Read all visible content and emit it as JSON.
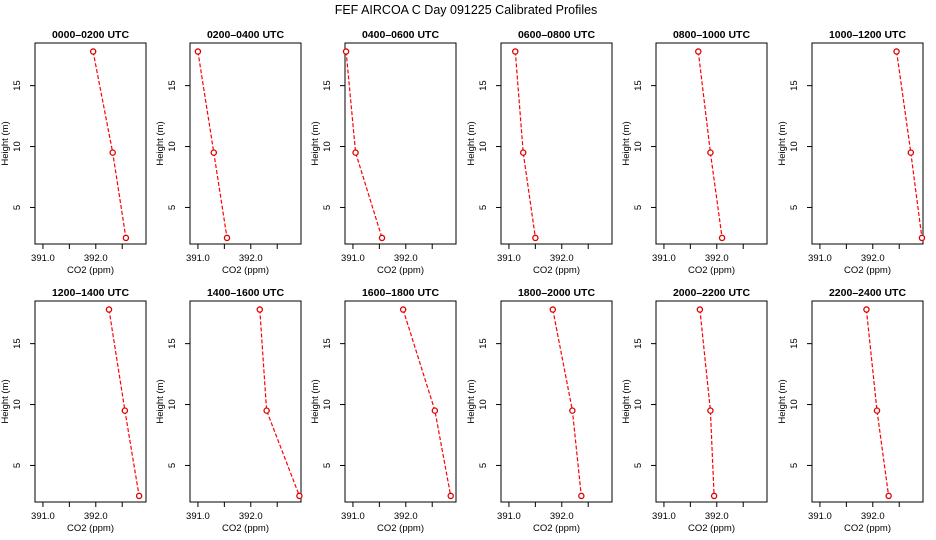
{
  "figure_title": "FEF AIRCOA C  Day 091225  Calibrated Profiles",
  "colors": {
    "line": "#ff0000",
    "marker": "#dd0000",
    "axis": "#000000"
  },
  "chart_data": [
    {
      "type": "line",
      "title": "0000–0200 UTC",
      "xlabel": "CO2 (ppm)",
      "ylabel": "Height (m)",
      "xlim": [
        390.85,
        392.95
      ],
      "ylim": [
        2.0,
        18.5
      ],
      "xticks": [
        391.0,
        392.0
      ],
      "xtick_labels": [
        "391.0",
        "392.0"
      ],
      "yticks": [
        5,
        10,
        15
      ],
      "ytick_labels": [
        "5",
        "10",
        "15"
      ],
      "series": [
        {
          "name": "CO2",
          "x": [
            391.95,
            392.32,
            392.57
          ],
          "y": [
            17.8,
            9.5,
            2.5
          ]
        }
      ]
    },
    {
      "type": "line",
      "title": "0200–0400 UTC",
      "xlabel": "CO2 (ppm)",
      "ylabel": "Height (m)",
      "xlim": [
        390.85,
        392.95
      ],
      "ylim": [
        2.0,
        18.5
      ],
      "xticks": [
        391.0,
        392.0
      ],
      "xtick_labels": [
        "391.0",
        "392.0"
      ],
      "yticks": [
        5,
        10,
        15
      ],
      "ytick_labels": [
        "5",
        "10",
        "15"
      ],
      "series": [
        {
          "name": "CO2",
          "x": [
            391.0,
            391.3,
            391.55
          ],
          "y": [
            17.8,
            9.5,
            2.5
          ]
        }
      ]
    },
    {
      "type": "line",
      "title": "0400–0600 UTC",
      "xlabel": "CO2 (ppm)",
      "ylabel": "Height (m)",
      "xlim": [
        390.85,
        392.95
      ],
      "ylim": [
        2.0,
        18.5
      ],
      "xticks": [
        391.0,
        392.0
      ],
      "xtick_labels": [
        "391.0",
        "392.0"
      ],
      "yticks": [
        5,
        10,
        15
      ],
      "ytick_labels": [
        "5",
        "10",
        "15"
      ],
      "series": [
        {
          "name": "CO2",
          "x": [
            390.87,
            391.05,
            391.55
          ],
          "y": [
            17.8,
            9.5,
            2.5
          ]
        }
      ]
    },
    {
      "type": "line",
      "title": "0600–0800 UTC",
      "xlabel": "CO2 (ppm)",
      "ylabel": "Height (m)",
      "xlim": [
        390.85,
        392.95
      ],
      "ylim": [
        2.0,
        18.5
      ],
      "xticks": [
        391.0,
        392.0
      ],
      "xtick_labels": [
        "391.0",
        "392.0"
      ],
      "yticks": [
        5,
        10,
        15
      ],
      "ytick_labels": [
        "5",
        "10",
        "15"
      ],
      "series": [
        {
          "name": "CO2",
          "x": [
            391.12,
            391.27,
            391.5
          ],
          "y": [
            17.8,
            9.5,
            2.5
          ]
        }
      ]
    },
    {
      "type": "line",
      "title": "0800–1000 UTC",
      "xlabel": "CO2 (ppm)",
      "ylabel": "Height (m)",
      "xlim": [
        390.85,
        392.95
      ],
      "ylim": [
        2.0,
        18.5
      ],
      "xticks": [
        391.0,
        392.0
      ],
      "xtick_labels": [
        "391.0",
        "392.0"
      ],
      "yticks": [
        5,
        10,
        15
      ],
      "ytick_labels": [
        "5",
        "10",
        "15"
      ],
      "series": [
        {
          "name": "CO2",
          "x": [
            391.65,
            391.88,
            392.1
          ],
          "y": [
            17.8,
            9.5,
            2.5
          ]
        }
      ]
    },
    {
      "type": "line",
      "title": "1000–1200 UTC",
      "xlabel": "CO2 (ppm)",
      "ylabel": "Height (m)",
      "xlim": [
        390.85,
        392.95
      ],
      "ylim": [
        2.0,
        18.5
      ],
      "xticks": [
        391.0,
        392.0
      ],
      "xtick_labels": [
        "391.0",
        "392.0"
      ],
      "yticks": [
        5,
        10,
        15
      ],
      "ytick_labels": [
        "5",
        "10",
        "15"
      ],
      "series": [
        {
          "name": "CO2",
          "x": [
            392.45,
            392.72,
            392.93
          ],
          "y": [
            17.8,
            9.5,
            2.5
          ]
        }
      ]
    },
    {
      "type": "line",
      "title": "1200–1400 UTC",
      "xlabel": "CO2 (ppm)",
      "ylabel": "Height (m)",
      "xlim": [
        390.85,
        392.95
      ],
      "ylim": [
        2.0,
        18.5
      ],
      "xticks": [
        391.0,
        392.0
      ],
      "xtick_labels": [
        "391.0",
        "392.0"
      ],
      "yticks": [
        5,
        10,
        15
      ],
      "ytick_labels": [
        "5",
        "10",
        "15"
      ],
      "series": [
        {
          "name": "CO2",
          "x": [
            392.25,
            392.55,
            392.82
          ],
          "y": [
            17.8,
            9.5,
            2.5
          ]
        }
      ]
    },
    {
      "type": "line",
      "title": "1400–1600 UTC",
      "xlabel": "CO2 (ppm)",
      "ylabel": "Height (m)",
      "xlim": [
        390.85,
        392.95
      ],
      "ylim": [
        2.0,
        18.5
      ],
      "xticks": [
        391.0,
        392.0
      ],
      "xtick_labels": [
        "391.0",
        "392.0"
      ],
      "yticks": [
        5,
        10,
        15
      ],
      "ytick_labels": [
        "5",
        "10",
        "15"
      ],
      "series": [
        {
          "name": "CO2",
          "x": [
            392.17,
            392.3,
            392.92
          ],
          "y": [
            17.8,
            9.5,
            2.5
          ]
        }
      ]
    },
    {
      "type": "line",
      "title": "1600–1800 UTC",
      "xlabel": "CO2 (ppm)",
      "ylabel": "Height (m)",
      "xlim": [
        390.85,
        392.95
      ],
      "ylim": [
        2.0,
        18.5
      ],
      "xticks": [
        391.0,
        392.0
      ],
      "xtick_labels": [
        "391.0",
        "392.0"
      ],
      "yticks": [
        5,
        10,
        15
      ],
      "ytick_labels": [
        "5",
        "10",
        "15"
      ],
      "series": [
        {
          "name": "CO2",
          "x": [
            391.95,
            392.55,
            392.85
          ],
          "y": [
            17.8,
            9.5,
            2.5
          ]
        }
      ]
    },
    {
      "type": "line",
      "title": "1800–2000 UTC",
      "xlabel": "CO2 (ppm)",
      "ylabel": "Height (m)",
      "xlim": [
        390.85,
        392.95
      ],
      "ylim": [
        2.0,
        18.5
      ],
      "xticks": [
        391.0,
        392.0
      ],
      "xtick_labels": [
        "391.0",
        "392.0"
      ],
      "yticks": [
        5,
        10,
        15
      ],
      "ytick_labels": [
        "5",
        "10",
        "15"
      ],
      "series": [
        {
          "name": "CO2",
          "x": [
            391.83,
            392.2,
            392.37
          ],
          "y": [
            17.8,
            9.5,
            2.5
          ]
        }
      ]
    },
    {
      "type": "line",
      "title": "2000–2200 UTC",
      "xlabel": "CO2 (ppm)",
      "ylabel": "Height (m)",
      "xlim": [
        390.85,
        392.95
      ],
      "ylim": [
        2.0,
        18.5
      ],
      "xticks": [
        391.0,
        392.0
      ],
      "xtick_labels": [
        "391.0",
        "392.0"
      ],
      "yticks": [
        5,
        10,
        15
      ],
      "ytick_labels": [
        "5",
        "10",
        "15"
      ],
      "series": [
        {
          "name": "CO2",
          "x": [
            391.68,
            391.88,
            391.95
          ],
          "y": [
            17.8,
            9.5,
            2.5
          ]
        }
      ]
    },
    {
      "type": "line",
      "title": "2200–2400 UTC",
      "xlabel": "CO2 (ppm)",
      "ylabel": "Height (m)",
      "xlim": [
        390.85,
        392.95
      ],
      "ylim": [
        2.0,
        18.5
      ],
      "xticks": [
        391.0,
        392.0
      ],
      "xtick_labels": [
        "391.0",
        "392.0"
      ],
      "yticks": [
        5,
        10,
        15
      ],
      "ytick_labels": [
        "5",
        "10",
        "15"
      ],
      "series": [
        {
          "name": "CO2",
          "x": [
            391.88,
            392.08,
            392.3
          ],
          "y": [
            17.8,
            9.5,
            2.5
          ]
        }
      ]
    }
  ]
}
